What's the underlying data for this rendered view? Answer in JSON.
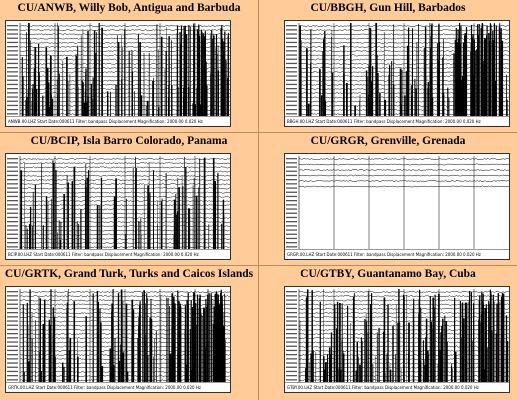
{
  "stations": [
    {
      "title": "CU/ANWB, Willy Bob, Antigua and Barbuda",
      "footer": "ANWB.00.LHZ   Start Date:000611   Filter: bandpass   Displacement   Magnification:   2000.00   0.020 Hz",
      "density": "heavy"
    },
    {
      "title": "CU/BBGH, Gun Hill, Barbados",
      "footer": "BBGH.00.LHZ   Start Date:000611   Filter: bandpass   Displacement   Magnification:   2000.00   0.020 Hz",
      "density": "heavy"
    },
    {
      "title": "CU/BCIP, Isla Barro Colorado, Panama",
      "footer": "BCIP.00.LHZ   Start Date:000611   Filter: bandpass   Displacement   Magnification:   2000.00   0.020 Hz",
      "density": "medium"
    },
    {
      "title": "CU/GRGR, Grenville, Grenada",
      "footer": "GRGR.00.LHZ   Start Date:000611   Filter: bandpass   Displacement   Magnification:   2000.00   0.020 Hz",
      "density": "quiet"
    },
    {
      "title": "CU/GRTK, Grand Turk, Turks and Caicos Islands",
      "footer": "GRTK.00.LHZ   Start Date:000611   Filter: bandpass   Displacement   Magnification:   2000.00   0.020 Hz",
      "density": "heavy"
    },
    {
      "title": "CU/GTBY, Guantanamo Bay, Cuba",
      "footer": "GTBY.00.LHZ   Start Date:000611   Filter: bandpass   Displacement   Magnification:   2000.00   0.020 Hz",
      "density": "heavy"
    }
  ]
}
